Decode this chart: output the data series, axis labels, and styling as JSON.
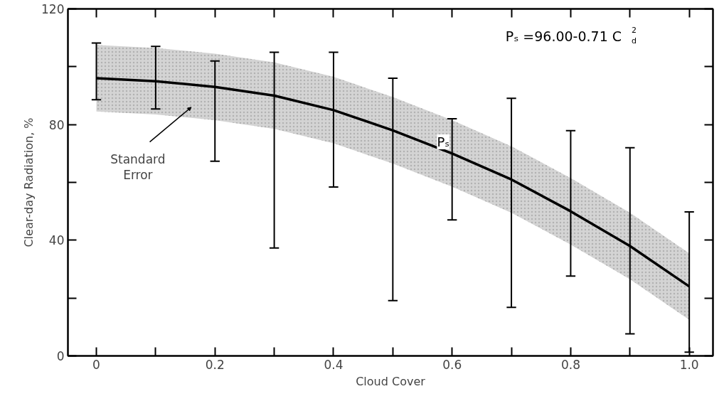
{
  "chart_data": {
    "type": "line",
    "xlabel": "Cloud Cover",
    "ylabel": "Clear-day Radiation, %",
    "x": [
      0,
      0.1,
      0.2,
      0.3,
      0.4,
      0.5,
      0.6,
      0.7,
      0.8,
      0.9,
      1.0
    ],
    "series": [
      {
        "name": "Pₛ",
        "color": "#000000",
        "values": [
          96,
          95,
          93,
          90,
          85,
          78,
          70,
          61,
          50,
          38,
          24
        ],
        "lower": [
          84.5,
          83.5,
          81.5,
          78.5,
          73.5,
          66.5,
          58.5,
          49.5,
          38.5,
          26.5,
          12.5
        ],
        "upper": [
          107.5,
          106.5,
          104.5,
          101.5,
          96.5,
          89.5,
          81.5,
          72.5,
          61.5,
          49.5,
          35.5
        ],
        "errors": [
          [
            88.6,
            108.2
          ],
          [
            85.4,
            107
          ],
          [
            67.3,
            102
          ],
          [
            37.3,
            105
          ],
          [
            58.4,
            105
          ],
          [
            19.1,
            96
          ],
          [
            47,
            82
          ],
          [
            16.8,
            89.1
          ],
          [
            27.6,
            77.9
          ],
          [
            7.6,
            72
          ],
          [
            1.3,
            49.8
          ]
        ]
      }
    ],
    "annotations": [
      {
        "text": "Pₛ =96.00-0.71 C$_{d}$$^{2}$"
      },
      "Standard Error"
    ],
    "xlim": [
      -0.048,
      1.04
    ],
    "ylim": [
      0,
      120
    ],
    "xticks": [
      0,
      {
        "value": 0.1,
        "label": null
      },
      0.2,
      {
        "value": 0.3,
        "label": null
      },
      0.4,
      {
        "value": 0.5,
        "label": null
      },
      0.6,
      {
        "value": 0.7,
        "label": null
      },
      0.8,
      {
        "value": 0.9,
        "label": null
      },
      {
        "value": 1.0,
        "label": "1.0"
      }
    ],
    "yticks": [
      0,
      {
        "value": 20,
        "label": null
      },
      40,
      {
        "value": 60,
        "label": null
      },
      80,
      {
        "value": 100,
        "label": null
      },
      120
    ],
    "grid": false,
    "marker": "none",
    "line_style": "solid"
  }
}
